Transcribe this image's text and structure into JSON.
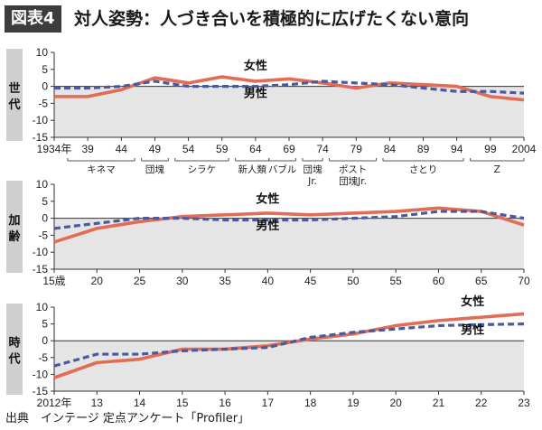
{
  "header": {
    "badge": "図表4",
    "title": "対人姿勢：人づき合いを積極的に広げたくない意向"
  },
  "source": "出典　インテージ 定点アンケート「Profiler」",
  "colors": {
    "female": "#e36c55",
    "male": "#4a5a9e",
    "band": "#e5e5e5",
    "tab": "#cfcfcf"
  },
  "chart_data": [
    {
      "type": "line",
      "side_label": "世代",
      "xlim": [
        1934,
        2004
      ],
      "ylim": [
        -15,
        10
      ],
      "yticks": [
        10,
        5,
        0,
        -5,
        -10,
        -15
      ],
      "x_ticks": [
        1934,
        1939,
        1944,
        1949,
        1954,
        1959,
        1964,
        1969,
        1974,
        1979,
        1984,
        1989,
        1994,
        1999,
        2004
      ],
      "x_tick_labels": [
        "1934年",
        "39",
        "44",
        "49",
        "54",
        "59",
        "64",
        "69",
        "74",
        "79",
        "84",
        "89",
        "94",
        "99",
        "2004"
      ],
      "groups": [
        {
          "label": "キネマ",
          "from": 1936,
          "to": 1946
        },
        {
          "label": "団塊",
          "from": 1947,
          "to": 1951
        },
        {
          "label": "シラケ",
          "from": 1952,
          "to": 1960
        },
        {
          "label": "新人類",
          "from": 1961,
          "to": 1966
        },
        {
          "label": "バブル",
          "from": 1966,
          "to": 1970
        },
        {
          "label": "団塊",
          "label2": "Jr.",
          "from": 1971,
          "to": 1974
        },
        {
          "label": "ポスト",
          "label2": "団塊Jr.",
          "from": 1975,
          "to": 1982
        },
        {
          "label": "さとり",
          "from": 1983,
          "to": 1995
        },
        {
          "label": "Z",
          "from": 1996,
          "to": 2004
        }
      ],
      "series": [
        {
          "name": "女性",
          "values": [
            [
              1934,
              -3
            ],
            [
              1939,
              -3
            ],
            [
              1944,
              -1
            ],
            [
              1949,
              2.5
            ],
            [
              1954,
              1
            ],
            [
              1959,
              2.8
            ],
            [
              1964,
              1.5
            ],
            [
              1969,
              2.2
            ],
            [
              1974,
              1
            ],
            [
              1979,
              -0.5
            ],
            [
              1984,
              1
            ],
            [
              1989,
              0.5
            ],
            [
              1994,
              0
            ],
            [
              1999,
              -3
            ],
            [
              2004,
              -4
            ]
          ]
        },
        {
          "name": "男性",
          "values": [
            [
              1934,
              -0.5
            ],
            [
              1939,
              -0.5
            ],
            [
              1944,
              0
            ],
            [
              1949,
              1.5
            ],
            [
              1954,
              0
            ],
            [
              1959,
              0
            ],
            [
              1964,
              0
            ],
            [
              1969,
              0.5
            ],
            [
              1974,
              1.5
            ],
            [
              1979,
              1
            ],
            [
              1984,
              0.5
            ],
            [
              1989,
              -0.5
            ],
            [
              1994,
              -1.5
            ],
            [
              1999,
              -1.5
            ],
            [
              2004,
              -2
            ]
          ]
        }
      ],
      "labels": {
        "female": {
          "text": "女性",
          "x": 1964,
          "y": 5
        },
        "male": {
          "text": "男性",
          "x": 1964,
          "y": -3.2
        }
      }
    },
    {
      "type": "line",
      "side_label": "加齢",
      "xlim": [
        15,
        70
      ],
      "ylim": [
        -15,
        10
      ],
      "yticks": [
        10,
        5,
        0,
        -5,
        -10,
        -15
      ],
      "x_ticks": [
        15,
        20,
        25,
        30,
        35,
        40,
        45,
        50,
        55,
        60,
        65,
        70
      ],
      "x_tick_labels": [
        "15歳",
        "20",
        "25",
        "30",
        "35",
        "40",
        "45",
        "50",
        "55",
        "60",
        "65",
        "70"
      ],
      "series": [
        {
          "name": "女性",
          "values": [
            [
              15,
              -7
            ],
            [
              20,
              -3
            ],
            [
              25,
              -1
            ],
            [
              30,
              0.5
            ],
            [
              35,
              1
            ],
            [
              40,
              1.5
            ],
            [
              45,
              1
            ],
            [
              50,
              1.5
            ],
            [
              55,
              2
            ],
            [
              60,
              3
            ],
            [
              65,
              2
            ],
            [
              70,
              -2
            ]
          ]
        },
        {
          "name": "男性",
          "values": [
            [
              15,
              -3
            ],
            [
              20,
              -1.5
            ],
            [
              25,
              0
            ],
            [
              30,
              0
            ],
            [
              35,
              -0.5
            ],
            [
              40,
              -0.5
            ],
            [
              45,
              -0.5
            ],
            [
              50,
              0
            ],
            [
              55,
              0.5
            ],
            [
              60,
              2
            ],
            [
              65,
              2
            ],
            [
              70,
              0
            ]
          ]
        }
      ],
      "labels": {
        "female": {
          "text": "女性",
          "x": 40,
          "y": 4.5
        },
        "male": {
          "text": "男性",
          "x": 40,
          "y": -3.3
        }
      }
    },
    {
      "type": "line",
      "side_label": "時代",
      "xlim": [
        2012,
        2023
      ],
      "ylim": [
        -15,
        10
      ],
      "yticks": [
        10,
        5,
        0,
        -5,
        -10,
        -15
      ],
      "x_ticks": [
        2012,
        2013,
        2014,
        2015,
        2016,
        2017,
        2018,
        2019,
        2020,
        2021,
        2022,
        2023
      ],
      "x_tick_labels": [
        "2012年",
        "13",
        "14",
        "15",
        "16",
        "17",
        "18",
        "19",
        "20",
        "21",
        "22",
        "23"
      ],
      "series": [
        {
          "name": "女性",
          "values": [
            [
              2012,
              -11
            ],
            [
              2013,
              -6.5
            ],
            [
              2014,
              -5.5
            ],
            [
              2015,
              -2.5
            ],
            [
              2016,
              -2.5
            ],
            [
              2017,
              -1.5
            ],
            [
              2018,
              0.5
            ],
            [
              2019,
              2
            ],
            [
              2020,
              4.5
            ],
            [
              2021,
              6
            ],
            [
              2022,
              7
            ],
            [
              2023,
              8
            ]
          ]
        },
        {
          "name": "男性",
          "values": [
            [
              2012,
              -7.5
            ],
            [
              2013,
              -4
            ],
            [
              2014,
              -4
            ],
            [
              2015,
              -3
            ],
            [
              2016,
              -2.5
            ],
            [
              2017,
              -2
            ],
            [
              2018,
              1
            ],
            [
              2019,
              2.5
            ],
            [
              2020,
              3.5
            ],
            [
              2021,
              4.5
            ],
            [
              2022,
              4.8
            ],
            [
              2023,
              5
            ]
          ]
        }
      ],
      "labels": {
        "female": {
          "text": "女性",
          "x": 2021.8,
          "y": 10.6
        },
        "male": {
          "text": "男性",
          "x": 2021.8,
          "y": 2.1
        }
      }
    }
  ]
}
